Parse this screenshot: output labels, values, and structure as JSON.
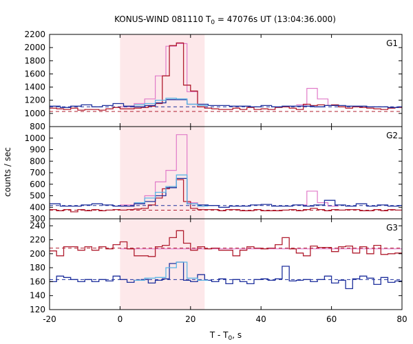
{
  "chart_data": {
    "type": "line",
    "title": "KONUS-WIND 081110 T",
    "title_sub": "0",
    "title_rest": " = 47076s UT (13:04:36.000)",
    "xlabel": "T - T",
    "xlabel_sub": "0",
    "xlabel_rest": ", s",
    "ylabel": "counts / sec",
    "xlim": [
      -20,
      80
    ],
    "xticks": [
      -20,
      0,
      20,
      40,
      60,
      80
    ],
    "highlight": {
      "x0": 0,
      "x1": 24,
      "color": "#fde8ea"
    },
    "colors": {
      "red": "#b01c2e",
      "blue": "#1d2f9c",
      "pink": "#e07ac8",
      "cyan": "#5cb6e6"
    },
    "panels": [
      {
        "label": "G1",
        "ylim": [
          800,
          2200
        ],
        "yticks": [
          800,
          1000,
          1200,
          1400,
          1600,
          1800,
          2000,
          2200
        ],
        "red_edges": [
          -20,
          -18,
          -16,
          -14,
          -12,
          -10,
          -8,
          -6,
          -4,
          -2,
          0,
          2,
          4,
          6,
          8,
          10,
          12,
          14,
          16,
          18,
          20,
          22,
          24,
          26,
          28,
          30,
          32,
          34,
          36,
          38,
          40,
          42,
          44,
          46,
          48,
          50,
          52,
          54,
          56,
          58,
          60,
          62,
          64,
          66,
          68,
          70,
          72,
          74,
          76,
          78,
          80
        ],
        "red_values": [
          1080,
          1070,
          1060,
          1080,
          1050,
          1060,
          1060,
          1050,
          1070,
          1090,
          1070,
          1070,
          1080,
          1090,
          1110,
          1150,
          1570,
          2030,
          2070,
          1430,
          1340,
          1100,
          1080,
          1070,
          1060,
          1060,
          1080,
          1060,
          1090,
          1060,
          1070,
          1060,
          1090,
          1100,
          1080,
          1060,
          1140,
          1120,
          1130,
          1120,
          1130,
          1100,
          1080,
          1100,
          1090,
          1080,
          1070,
          1060,
          1080,
          1090
        ],
        "red_bg": 1030,
        "blue_edges": [
          -20,
          -17,
          -14,
          -11,
          -8,
          -5,
          -2,
          1,
          4,
          7,
          10,
          13,
          16,
          19,
          22,
          25,
          28,
          31,
          34,
          37,
          40,
          43,
          46,
          49,
          52,
          55,
          58,
          61,
          64,
          67,
          70,
          73,
          76,
          79,
          80
        ],
        "blue_values": [
          1110,
          1090,
          1110,
          1130,
          1100,
          1120,
          1150,
          1110,
          1100,
          1120,
          1160,
          1210,
          1210,
          1140,
          1140,
          1120,
          1120,
          1110,
          1110,
          1100,
          1120,
          1100,
          1110,
          1110,
          1110,
          1100,
          1120,
          1120,
          1110,
          1110,
          1100,
          1100,
          1090,
          1100
        ],
        "blue_bg": 1100,
        "pink_edges": [
          0,
          4,
          7,
          10,
          13,
          16,
          19,
          22,
          25
        ],
        "pink_values": [
          1100,
          1150,
          1220,
          1570,
          2020,
          2060,
          1330,
          1100
        ],
        "pink_edges2": [
          50,
          53,
          56,
          59,
          62
        ],
        "pink_values2": [
          1130,
          1380,
          1220,
          1120
        ],
        "cyan_edges": [
          4,
          7,
          10,
          13,
          16,
          19,
          22,
          25
        ],
        "cyan_values": [
          1130,
          1150,
          1200,
          1230,
          1220,
          1140,
          1120
        ]
      },
      {
        "label": "G2",
        "ylim": [
          300,
          1100
        ],
        "yticks": [
          300,
          400,
          500,
          600,
          700,
          800,
          900,
          1000
        ],
        "red_edges": [
          -20,
          -18,
          -16,
          -14,
          -12,
          -10,
          -8,
          -6,
          -4,
          -2,
          0,
          2,
          4,
          6,
          8,
          10,
          12,
          14,
          16,
          18,
          20,
          22,
          24,
          26,
          28,
          30,
          32,
          34,
          36,
          38,
          40,
          42,
          44,
          46,
          48,
          50,
          52,
          54,
          56,
          58,
          60,
          62,
          64,
          66,
          68,
          70,
          72,
          74,
          76,
          78,
          80
        ],
        "red_values": [
          380,
          370,
          380,
          360,
          380,
          370,
          380,
          370,
          375,
          380,
          375,
          380,
          385,
          390,
          420,
          480,
          560,
          580,
          640,
          450,
          390,
          380,
          380,
          380,
          370,
          380,
          380,
          370,
          370,
          380,
          370,
          370,
          370,
          375,
          380,
          370,
          380,
          390,
          380,
          370,
          380,
          375,
          380,
          380,
          370,
          370,
          380,
          370,
          380,
          375
        ],
        "red_bg": 375,
        "blue_edges": [
          -20,
          -17,
          -14,
          -11,
          -8,
          -5,
          -2,
          1,
          4,
          7,
          10,
          13,
          16,
          19,
          22,
          25,
          28,
          31,
          34,
          37,
          40,
          43,
          46,
          49,
          52,
          55,
          58,
          61,
          64,
          67,
          70,
          73,
          76,
          79,
          80
        ],
        "blue_values": [
          430,
          410,
          410,
          420,
          430,
          420,
          410,
          410,
          430,
          450,
          500,
          570,
          650,
          430,
          420,
          415,
          400,
          410,
          410,
          420,
          425,
          410,
          410,
          420,
          410,
          420,
          460,
          420,
          410,
          430,
          410,
          420,
          410,
          415
        ],
        "blue_bg": 415,
        "pink_edges": [
          0,
          4,
          7,
          10,
          13,
          16,
          19,
          22,
          25
        ],
        "pink_values": [
          420,
          440,
          500,
          620,
          720,
          1030,
          440,
          410
        ],
        "pink_edges2": [
          50,
          53,
          56,
          59,
          62
        ],
        "pink_values2": [
          420,
          540,
          440,
          410
        ],
        "cyan_edges": [
          4,
          7,
          10,
          13,
          16,
          19,
          22,
          25
        ],
        "cyan_values": [
          440,
          480,
          530,
          580,
          680,
          430,
          410
        ]
      },
      {
        "label": "G3",
        "ylim": [
          120,
          250
        ],
        "yticks": [
          120,
          140,
          160,
          180,
          200,
          220,
          240
        ],
        "red_edges": [
          -20,
          -18,
          -16,
          -14,
          -12,
          -10,
          -8,
          -6,
          -4,
          -2,
          0,
          2,
          4,
          6,
          8,
          10,
          12,
          14,
          16,
          18,
          20,
          22,
          24,
          26,
          28,
          30,
          32,
          34,
          36,
          38,
          40,
          42,
          44,
          46,
          48,
          50,
          52,
          54,
          56,
          58,
          60,
          62,
          64,
          66,
          68,
          70,
          72,
          74,
          76,
          78,
          80
        ],
        "red_values": [
          204,
          197,
          210,
          210,
          205,
          210,
          205,
          210,
          207,
          213,
          217,
          207,
          197,
          197,
          196,
          210,
          212,
          223,
          233,
          215,
          205,
          210,
          207,
          208,
          205,
          205,
          197,
          205,
          210,
          208,
          207,
          208,
          213,
          223,
          207,
          201,
          197,
          211,
          209,
          209,
          203,
          210,
          211,
          201,
          210,
          200,
          212,
          199,
          200,
          201
        ],
        "red_bg": 208,
        "blue_edges": [
          -20,
          -18,
          -16,
          -14,
          -12,
          -10,
          -8,
          -6,
          -4,
          -2,
          0,
          2,
          4,
          6,
          8,
          10,
          12,
          14,
          16,
          18,
          20,
          22,
          24,
          26,
          28,
          30,
          32,
          34,
          36,
          38,
          40,
          42,
          44,
          46,
          48,
          50,
          52,
          54,
          56,
          58,
          60,
          62,
          64,
          66,
          68,
          70,
          72,
          74,
          76,
          78,
          80
        ],
        "blue_values": [
          160,
          168,
          166,
          163,
          160,
          163,
          160,
          163,
          161,
          168,
          163,
          159,
          162,
          163,
          158,
          162,
          164,
          186,
          188,
          162,
          160,
          170,
          162,
          160,
          164,
          157,
          163,
          160,
          157,
          163,
          164,
          162,
          164,
          182,
          161,
          162,
          163,
          160,
          163,
          168,
          158,
          162,
          150,
          164,
          168,
          165,
          156,
          166,
          159,
          161
        ],
        "blue_bg": 163,
        "pink_edges": [
          0,
          80
        ],
        "pink_values": [
          207
        ],
        "pink_edges2": [],
        "pink_values2": [],
        "cyan_edges": [
          4,
          7,
          10,
          13,
          16,
          19,
          22,
          25
        ],
        "cyan_values": [
          162,
          165,
          166,
          180,
          188,
          165,
          162
        ]
      }
    ]
  }
}
